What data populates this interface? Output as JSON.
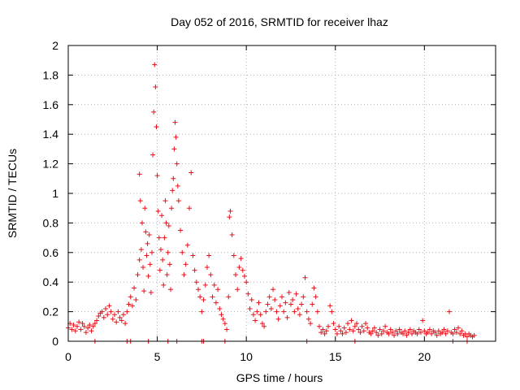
{
  "colors": {
    "marker": "#e8101a",
    "axis": "#000000",
    "grid": "#a0a0a0",
    "background": "#ffffff"
  },
  "chart_data": {
    "type": "scatter",
    "marker": "plus",
    "title": "Day 052 of 2016, SRMTID for receiver lhaz",
    "xlabel": "GPS time / hours",
    "ylabel": "SRMTID / TECUs",
    "xlim": [
      0,
      24
    ],
    "ylim": [
      0,
      2
    ],
    "grid": true,
    "xticks": [
      0,
      5,
      10,
      15,
      20
    ],
    "xtick_labels": [
      "0",
      "5",
      "10",
      "15",
      "20"
    ],
    "yticks": [
      0,
      0.2,
      0.4,
      0.6,
      0.8,
      1,
      1.2,
      1.4,
      1.6,
      1.8,
      2
    ],
    "ytick_labels": [
      "0",
      "0.2",
      "0.4",
      "0.6",
      "0.8",
      "1",
      "1.2",
      "1.4",
      "1.6",
      "1.8",
      "2"
    ],
    "series": [
      {
        "name": "SRMTID",
        "points": [
          [
            0.0,
            0.09
          ],
          [
            0.1,
            0.12
          ],
          [
            0.2,
            0.08
          ],
          [
            0.3,
            0.11
          ],
          [
            0.4,
            0.07
          ],
          [
            0.5,
            0.1
          ],
          [
            0.6,
            0.13
          ],
          [
            0.7,
            0.08
          ],
          [
            0.8,
            0.12
          ],
          [
            0.9,
            0.1
          ],
          [
            1.0,
            0.06
          ],
          [
            1.1,
            0.09
          ],
          [
            1.2,
            0.11
          ],
          [
            1.3,
            0.07
          ],
          [
            1.4,
            0.1
          ],
          [
            1.5,
            0.12
          ],
          [
            1.6,
            0.14
          ],
          [
            1.7,
            0.17
          ],
          [
            1.8,
            0.19
          ],
          [
            1.9,
            0.2
          ],
          [
            2.0,
            0.16
          ],
          [
            2.1,
            0.22
          ],
          [
            2.2,
            0.18
          ],
          [
            2.3,
            0.24
          ],
          [
            2.4,
            0.2
          ],
          [
            2.5,
            0.15
          ],
          [
            2.6,
            0.18
          ],
          [
            2.7,
            0.13
          ],
          [
            2.8,
            0.2
          ],
          [
            2.9,
            0.16
          ],
          [
            3.0,
            0.14
          ],
          [
            3.1,
            0.18
          ],
          [
            3.2,
            0.12
          ],
          [
            3.3,
            0.2
          ],
          [
            3.4,
            0.25
          ],
          [
            3.5,
            0.3
          ],
          [
            3.6,
            0.24
          ],
          [
            3.7,
            0.36
          ],
          [
            3.8,
            0.28
          ],
          [
            3.9,
            0.45
          ],
          [
            4.0,
            0.55
          ],
          [
            4.0,
            1.13
          ],
          [
            4.05,
            0.95
          ],
          [
            4.1,
            0.62
          ],
          [
            4.15,
            0.8
          ],
          [
            4.2,
            0.5
          ],
          [
            4.25,
            0.34
          ],
          [
            4.3,
            0.9
          ],
          [
            4.35,
            0.74
          ],
          [
            4.4,
            0.58
          ],
          [
            4.45,
            0.66
          ],
          [
            4.5,
            0.44
          ],
          [
            4.55,
            0.72
          ],
          [
            4.6,
            0.52
          ],
          [
            4.65,
            0.33
          ],
          [
            4.7,
            0.6
          ],
          [
            4.75,
            1.26
          ],
          [
            4.8,
            1.55
          ],
          [
            4.85,
            1.87
          ],
          [
            4.9,
            1.72
          ],
          [
            4.95,
            1.45
          ],
          [
            5.0,
            1.12
          ],
          [
            5.05,
            0.88
          ],
          [
            5.1,
            0.7
          ],
          [
            5.15,
            0.48
          ],
          [
            5.2,
            0.62
          ],
          [
            5.25,
            0.85
          ],
          [
            5.3,
            0.55
          ],
          [
            5.35,
            0.38
          ],
          [
            5.4,
            0.7
          ],
          [
            5.45,
            0.95
          ],
          [
            5.5,
            0.8
          ],
          [
            5.55,
            0.45
          ],
          [
            5.6,
            0.6
          ],
          [
            5.65,
            0.78
          ],
          [
            5.7,
            0.52
          ],
          [
            5.75,
            0.35
          ],
          [
            5.8,
            0.9
          ],
          [
            5.85,
            1.02
          ],
          [
            5.9,
            1.1
          ],
          [
            5.95,
            1.3
          ],
          [
            6.0,
            1.48
          ],
          [
            6.05,
            1.38
          ],
          [
            6.1,
            1.2
          ],
          [
            6.15,
            1.05
          ],
          [
            6.2,
            0.95
          ],
          [
            6.3,
            0.75
          ],
          [
            6.4,
            0.6
          ],
          [
            6.5,
            0.45
          ],
          [
            6.6,
            0.52
          ],
          [
            6.7,
            0.65
          ],
          [
            6.8,
            0.9
          ],
          [
            6.9,
            1.14
          ],
          [
            7.0,
            0.58
          ],
          [
            7.1,
            0.48
          ],
          [
            7.2,
            0.4
          ],
          [
            7.3,
            0.35
          ],
          [
            7.4,
            0.3
          ],
          [
            7.5,
            0.2
          ],
          [
            7.6,
            0.28
          ],
          [
            7.7,
            0.38
          ],
          [
            7.8,
            0.5
          ],
          [
            7.9,
            0.58
          ],
          [
            8.0,
            0.45
          ],
          [
            8.1,
            0.3
          ],
          [
            8.2,
            0.38
          ],
          [
            8.3,
            0.26
          ],
          [
            8.4,
            0.35
          ],
          [
            8.5,
            0.22
          ],
          [
            8.6,
            0.18
          ],
          [
            8.7,
            0.15
          ],
          [
            8.8,
            0.12
          ],
          [
            8.9,
            0.08
          ],
          [
            9.0,
            0.3
          ],
          [
            9.05,
            0.84
          ],
          [
            9.1,
            0.88
          ],
          [
            9.2,
            0.72
          ],
          [
            9.3,
            0.58
          ],
          [
            9.4,
            0.45
          ],
          [
            9.5,
            0.35
          ],
          [
            9.6,
            0.5
          ],
          [
            9.7,
            0.56
          ],
          [
            9.8,
            0.48
          ],
          [
            9.9,
            0.44
          ],
          [
            10.0,
            0.4
          ],
          [
            10.1,
            0.32
          ],
          [
            10.2,
            0.22
          ],
          [
            10.3,
            0.28
          ],
          [
            10.4,
            0.18
          ],
          [
            10.5,
            0.14
          ],
          [
            10.6,
            0.2
          ],
          [
            10.7,
            0.26
          ],
          [
            10.8,
            0.18
          ],
          [
            10.9,
            0.12
          ],
          [
            11.0,
            0.1
          ],
          [
            11.1,
            0.2
          ],
          [
            11.2,
            0.25
          ],
          [
            11.3,
            0.3
          ],
          [
            11.4,
            0.22
          ],
          [
            11.5,
            0.35
          ],
          [
            11.6,
            0.28
          ],
          [
            11.7,
            0.2
          ],
          [
            11.8,
            0.15
          ],
          [
            11.9,
            0.24
          ],
          [
            12.0,
            0.3
          ],
          [
            12.1,
            0.2
          ],
          [
            12.2,
            0.26
          ],
          [
            12.3,
            0.16
          ],
          [
            12.4,
            0.33
          ],
          [
            12.5,
            0.25
          ],
          [
            12.6,
            0.28
          ],
          [
            12.7,
            0.2
          ],
          [
            12.8,
            0.32
          ],
          [
            12.9,
            0.22
          ],
          [
            13.0,
            0.18
          ],
          [
            13.1,
            0.25
          ],
          [
            13.2,
            0.3
          ],
          [
            13.3,
            0.43
          ],
          [
            13.4,
            0.2
          ],
          [
            13.5,
            0.15
          ],
          [
            13.6,
            0.12
          ],
          [
            13.7,
            0.25
          ],
          [
            13.8,
            0.36
          ],
          [
            13.9,
            0.3
          ],
          [
            14.0,
            0.2
          ],
          [
            14.1,
            0.1
          ],
          [
            14.2,
            0.06
          ],
          [
            14.3,
            0.08
          ],
          [
            14.4,
            0.05
          ],
          [
            14.5,
            0.07
          ],
          [
            14.6,
            0.1
          ],
          [
            14.7,
            0.24
          ],
          [
            14.8,
            0.2
          ],
          [
            14.9,
            0.12
          ],
          [
            15.0,
            0.08
          ],
          [
            15.1,
            0.05
          ],
          [
            15.2,
            0.1
          ],
          [
            15.3,
            0.07
          ],
          [
            15.4,
            0.05
          ],
          [
            15.5,
            0.09
          ],
          [
            15.6,
            0.06
          ],
          [
            15.7,
            0.12
          ],
          [
            15.8,
            0.08
          ],
          [
            15.9,
            0.14
          ],
          [
            16.0,
            0.07
          ],
          [
            16.1,
            0.1
          ],
          [
            16.2,
            0.12
          ],
          [
            16.3,
            0.08
          ],
          [
            16.4,
            0.06
          ],
          [
            16.5,
            0.1
          ],
          [
            16.6,
            0.07
          ],
          [
            16.7,
            0.12
          ],
          [
            16.8,
            0.09
          ],
          [
            16.9,
            0.06
          ],
          [
            17.0,
            0.05
          ],
          [
            17.1,
            0.07
          ],
          [
            17.2,
            0.09
          ],
          [
            17.3,
            0.06
          ],
          [
            17.4,
            0.04
          ],
          [
            17.5,
            0.08
          ],
          [
            17.6,
            0.05
          ],
          [
            17.7,
            0.07
          ],
          [
            17.8,
            0.1
          ],
          [
            17.9,
            0.06
          ],
          [
            18.0,
            0.05
          ],
          [
            18.1,
            0.08
          ],
          [
            18.2,
            0.06
          ],
          [
            18.3,
            0.04
          ],
          [
            18.4,
            0.07
          ],
          [
            18.5,
            0.05
          ],
          [
            18.6,
            0.08
          ],
          [
            18.7,
            0.06
          ],
          [
            18.8,
            0.05
          ],
          [
            18.9,
            0.07
          ],
          [
            19.0,
            0.04
          ],
          [
            19.1,
            0.06
          ],
          [
            19.2,
            0.08
          ],
          [
            19.3,
            0.05
          ],
          [
            19.4,
            0.07
          ],
          [
            19.5,
            0.06
          ],
          [
            19.6,
            0.05
          ],
          [
            19.7,
            0.08
          ],
          [
            19.8,
            0.06
          ],
          [
            19.9,
            0.14
          ],
          [
            20.0,
            0.07
          ],
          [
            20.1,
            0.05
          ],
          [
            20.2,
            0.06
          ],
          [
            20.3,
            0.08
          ],
          [
            20.4,
            0.05
          ],
          [
            20.5,
            0.07
          ],
          [
            20.6,
            0.06
          ],
          [
            20.7,
            0.04
          ],
          [
            20.8,
            0.07
          ],
          [
            20.9,
            0.05
          ],
          [
            21.0,
            0.06
          ],
          [
            21.1,
            0.08
          ],
          [
            21.2,
            0.05
          ],
          [
            21.3,
            0.07
          ],
          [
            21.4,
            0.2
          ],
          [
            21.5,
            0.06
          ],
          [
            21.6,
            0.05
          ],
          [
            21.7,
            0.08
          ],
          [
            21.8,
            0.06
          ],
          [
            21.9,
            0.09
          ],
          [
            22.0,
            0.05
          ],
          [
            22.1,
            0.07
          ],
          [
            22.2,
            0.04
          ],
          [
            22.3,
            0.05
          ],
          [
            22.4,
            0.03
          ],
          [
            22.5,
            0.05
          ],
          [
            22.6,
            0.04
          ],
          [
            22.7,
            0.03
          ],
          [
            22.8,
            0.04
          ],
          [
            1.5,
            0.0
          ],
          [
            3.3,
            0.0
          ],
          [
            3.5,
            0.0
          ],
          [
            4.5,
            0.0
          ],
          [
            5.6,
            0.0
          ],
          [
            6.1,
            0.0
          ],
          [
            7.5,
            0.0
          ],
          [
            7.6,
            0.0
          ],
          [
            8.8,
            0.0
          ],
          [
            13.4,
            0.0
          ],
          [
            16.1,
            0.0
          ],
          [
            21.6,
            0.0
          ],
          [
            22.4,
            0.0
          ]
        ]
      }
    ]
  }
}
